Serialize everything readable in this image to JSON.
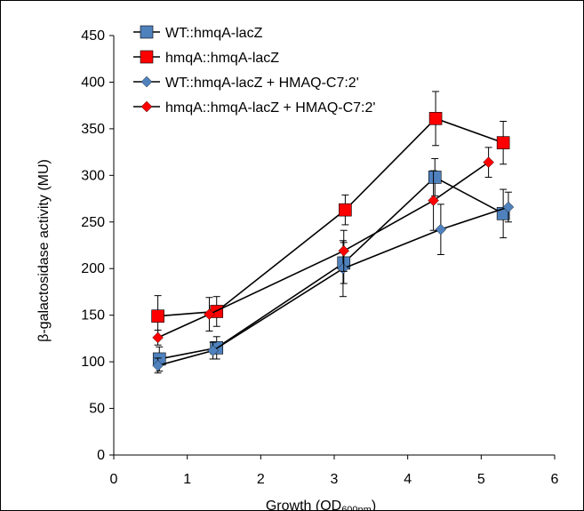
{
  "chart_data": {
    "type": "line",
    "title": "",
    "xlabel": "Growth (OD",
    "xlabel_sub": "600nm",
    "xlabel_close": ")",
    "ylabel": "β-galactosidase activity (MU)",
    "xlim": [
      0,
      6
    ],
    "ylim": [
      0,
      450
    ],
    "xticks": [
      "0",
      "1",
      "2",
      "3",
      "4",
      "5",
      "6"
    ],
    "yticks": [
      "0",
      "50",
      "100",
      "150",
      "200",
      "250",
      "300",
      "350",
      "400",
      "450"
    ],
    "grid": false,
    "legend_position": "top-left",
    "series": [
      {
        "name": "WT::hmqA-lacZ",
        "marker": "square",
        "color": "#4f81bd",
        "x": [
          0.62,
          1.4,
          3.13,
          4.37,
          5.3
        ],
        "y": [
          103,
          115,
          206,
          298,
          259
        ],
        "err": [
          13,
          12,
          22,
          20,
          26
        ]
      },
      {
        "name": "hmqA::hmqA-lacZ",
        "marker": "square",
        "color": "#ff0000",
        "x": [
          0.6,
          1.4,
          3.15,
          4.38,
          5.3
        ],
        "y": [
          149,
          154,
          263,
          361,
          335
        ],
        "err": [
          22,
          16,
          16,
          29,
          23
        ]
      },
      {
        "name": "WT::hmqA-lacZ + HMAQ-C7:2'",
        "marker": "diamond",
        "color": "#4f81bd",
        "x": [
          0.6,
          1.35,
          3.12,
          4.45,
          5.37
        ],
        "y": [
          96,
          112,
          200,
          242,
          266
        ],
        "err": [
          8,
          9,
          30,
          27,
          16
        ]
      },
      {
        "name": "hmqA::hmqA-lacZ + HMAQ-C7:2'",
        "marker": "diamond",
        "color": "#ff0000",
        "x": [
          0.6,
          1.3,
          3.13,
          4.35,
          5.1
        ],
        "y": [
          126,
          151,
          219,
          273,
          314
        ],
        "err": [
          8,
          18,
          22,
          32,
          16
        ]
      }
    ]
  }
}
